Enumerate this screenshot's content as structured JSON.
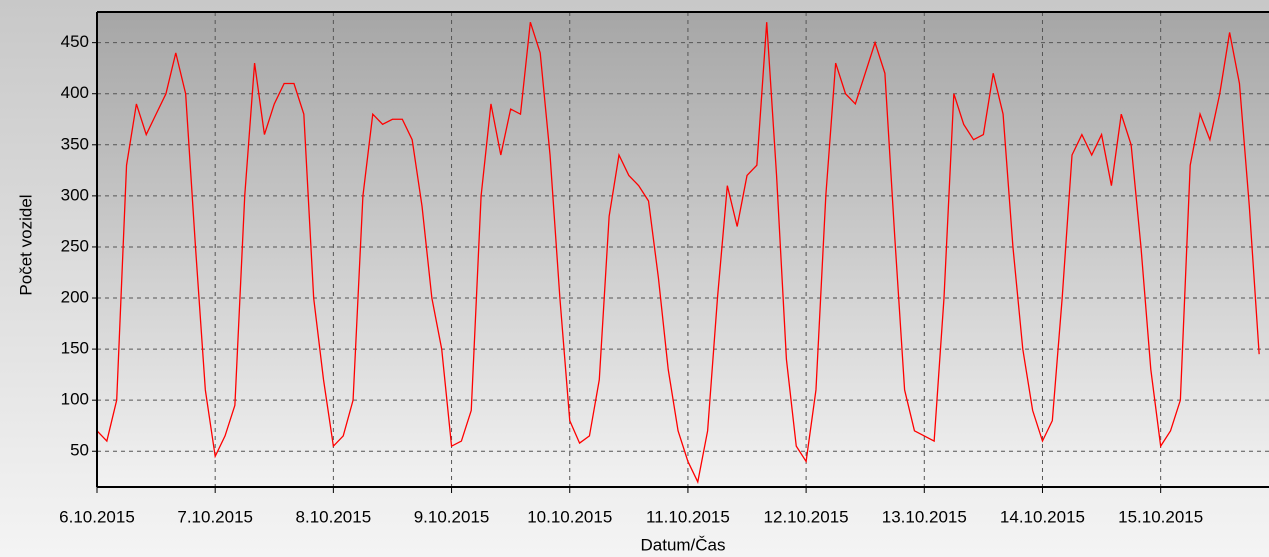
{
  "chart_data": {
    "type": "line",
    "x_label": "Datum/Čas",
    "y_label": "Počet vozidel",
    "series": [
      {
        "name": "Počet vozidel",
        "color": "#ff0000",
        "values": [
          70,
          60,
          100,
          330,
          390,
          360,
          380,
          400,
          440,
          400,
          250,
          110,
          45,
          65,
          95,
          300,
          430,
          360,
          390,
          410,
          410,
          380,
          200,
          120,
          55,
          65,
          100,
          300,
          380,
          370,
          375,
          375,
          355,
          290,
          200,
          150,
          55,
          60,
          90,
          300,
          390,
          340,
          385,
          380,
          470,
          440,
          340,
          200,
          80,
          58,
          65,
          120,
          280,
          340,
          320,
          310,
          295,
          220,
          130,
          70,
          40,
          20,
          70,
          200,
          310,
          270,
          320,
          330,
          470,
          320,
          140,
          55,
          40,
          110,
          300,
          430,
          400,
          390,
          420,
          450,
          420,
          260,
          110,
          70,
          65,
          60,
          200,
          400,
          370,
          355,
          360,
          420,
          380,
          250,
          150,
          90,
          60,
          80,
          200,
          340,
          360,
          340,
          360,
          310,
          380,
          350,
          250,
          130,
          55,
          70,
          100,
          330,
          380,
          355,
          400,
          460,
          410,
          290,
          145
        ]
      }
    ],
    "xlim": [
      0,
      119
    ],
    "xticks": [
      {
        "value": 0,
        "label": "6.10.2015"
      },
      {
        "value": 12,
        "label": "7.10.2015"
      },
      {
        "value": 24,
        "label": "8.10.2015"
      },
      {
        "value": 36,
        "label": "9.10.2015"
      },
      {
        "value": 48,
        "label": "10.10.2015"
      },
      {
        "value": 60,
        "label": "11.10.2015"
      },
      {
        "value": 72,
        "label": "12.10.2015"
      },
      {
        "value": 84,
        "label": "13.10.2015"
      },
      {
        "value": 96,
        "label": "14.10.2015"
      },
      {
        "value": 108,
        "label": "15.10.2015"
      }
    ],
    "ylim": [
      15,
      480
    ],
    "yticks": [
      50,
      100,
      150,
      200,
      250,
      300,
      350,
      400,
      450
    ],
    "grid": true
  }
}
